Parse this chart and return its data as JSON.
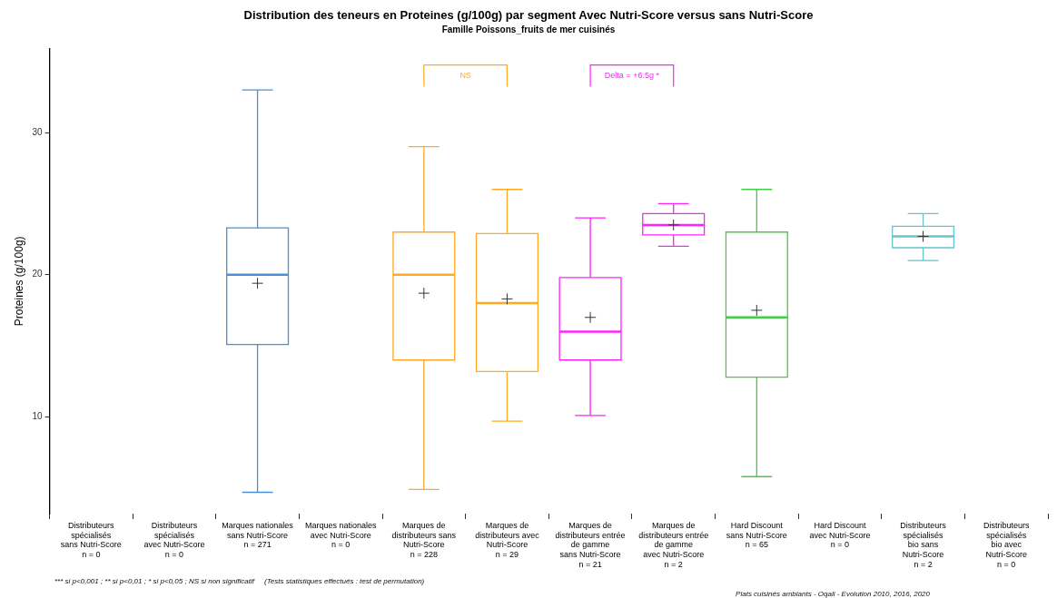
{
  "chart_data": {
    "type": "box",
    "title": "Distribution des teneurs en Proteines (g/100g) par segment Avec Nutri-Score versus sans Nutri-Score",
    "subtitle": "Famille Poissons_fruits de mer cuisinés",
    "ylabel": "Proteines (g/100g)",
    "categories": [
      "Distributeurs\nspécialisés\nsans Nutri-Score\nn = 0",
      "Distributeurs\nspécialisés\navec Nutri-Score\nn = 0",
      "Marques nationales\nsans Nutri-Score\nn = 271",
      "Marques nationales\navec Nutri-Score\nn = 0",
      "Marques de\ndistributeurs sans\nNutri-Score\nn = 228",
      "Marques de\ndistributeurs avec\nNutri-Score\nn = 29",
      "Marques de\ndistributeurs entrée\nde gamme\nsans Nutri-Score\nn = 21",
      "Marques de\ndistributeurs entrée\nde gamme\navec Nutri-Score\nn = 2",
      "Hard Discount\nsans Nutri-Score\nn = 65",
      "Hard Discount\navec Nutri-Score\nn = 0",
      "Distributeurs\nspécialisés\nbio sans\nNutri-Score\nn = 2",
      "Distributeurs\nspécialisés\nbio avec\nNutri-Score\nn = 0"
    ],
    "boxes": [
      null,
      null,
      {
        "low": 4.7,
        "q1": 15.1,
        "median": 20,
        "q3": 23.3,
        "high": 33,
        "mean": 19.4
      },
      null,
      {
        "low": 4.9,
        "q1": 14,
        "median": 20,
        "q3": 23,
        "high": 29,
        "mean": 18.7
      },
      {
        "low": 9.7,
        "q1": 13.2,
        "median": 18,
        "q3": 22.9,
        "high": 26,
        "mean": 18.3
      },
      {
        "low": 10.1,
        "q1": 14,
        "median": 16,
        "q3": 19.8,
        "high": 24,
        "mean": 17
      },
      {
        "low": 22,
        "q1": 22.8,
        "median": 23.5,
        "q3": 24.3,
        "high": 25,
        "mean": 23.5
      },
      {
        "low": 5.8,
        "q1": 12.8,
        "median": 17,
        "q3": 23,
        "high": 26,
        "mean": 17.5
      },
      null,
      {
        "low": 21,
        "q1": 21.9,
        "median": 22.7,
        "q3": 23.4,
        "high": 24.3,
        "mean": 22.7
      },
      null
    ],
    "colors": [
      null,
      null,
      "#4a90d9",
      null,
      "#ffaa22",
      "#ffaa22",
      "#ff22ff",
      "#ff22ff",
      "#44cc44",
      null,
      "#66c4cc",
      null
    ],
    "ylim": [
      3.2,
      35.9
    ],
    "yticks": [
      10,
      20,
      30
    ],
    "grid": false,
    "legend": false,
    "annotations": [
      "NS",
      "Delta = +6.5g *",
      "*** si p<0,001 ; ** si p<0,01 ; * si p<0,05 ; NS si non significatif     (Tests statistiques effectués : test de permutation)",
      "Plats cuisinés ambiants - Oqali - Evolution 2010, 2016, 2020"
    ]
  }
}
